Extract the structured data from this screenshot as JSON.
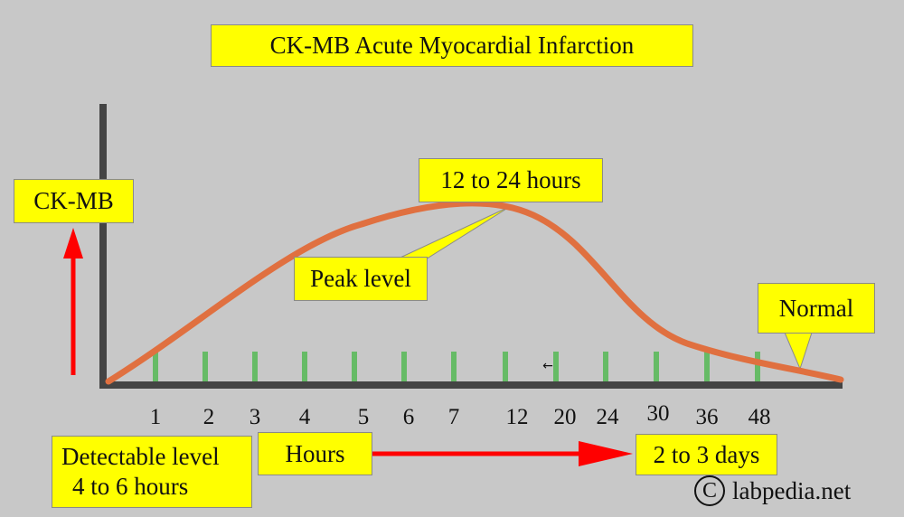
{
  "chart_data": {
    "type": "line",
    "title": "CK-MB Acute Myocardial Infarction",
    "ylabel": "CK-MB",
    "xlabel": "Hours",
    "x_ticks": [
      "1",
      "2",
      "3",
      "4",
      "5",
      "6",
      "7",
      "12",
      "20",
      "24",
      "30",
      "36",
      "48"
    ],
    "annotations": {
      "peak": "12 to 24 hours",
      "peak_label": "Peak level",
      "normal": "Normal",
      "detectable_line1": "Detectable level",
      "detectable_line2": "4 to 6 hours",
      "duration": "2 to 3 days",
      "small_arrow": "←"
    },
    "grid": false,
    "colors": {
      "curve": "#e07040",
      "ticks": "#66bb66",
      "axis": "#444444",
      "arrow": "#ff0000",
      "label_box": "#ffff00"
    }
  },
  "copyright": {
    "symbol": "C",
    "text": "labpedia.net"
  }
}
